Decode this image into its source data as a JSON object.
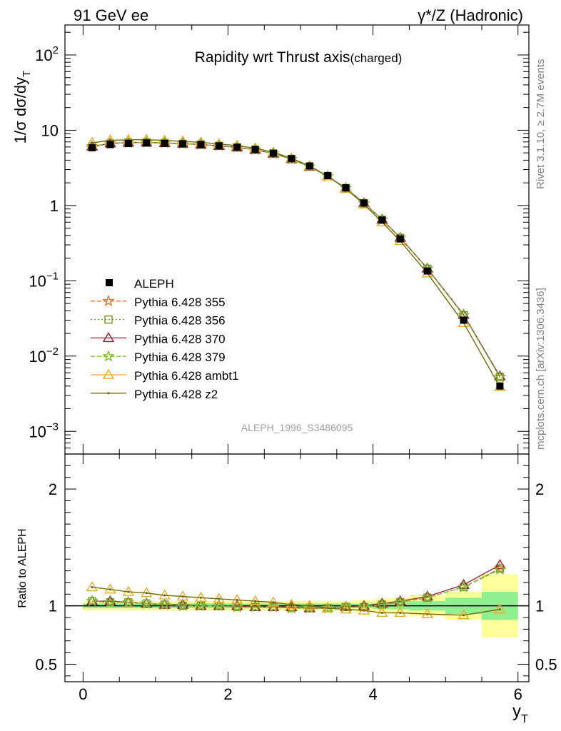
{
  "header": {
    "left": "91 GeV ee",
    "right": "γ*/Z (Hadronic)"
  },
  "side_labels": {
    "version": "Rivet 3.1.10, ≥ 2.7M events",
    "source": "mcplots.cern.ch [arXiv:1306.3436]"
  },
  "chart_data": {
    "type": "line",
    "title": "Rapidity wrt Thrust axis",
    "title_suffix": "(charged)",
    "analysis_label": "ALEPH_1996_S3486095",
    "ylabel_main": "1/σ dσ/dy",
    "ylabel_main_sub": "T",
    "ylabel_ratio": "Ratio to ALEPH",
    "xlabel": "y",
    "xlabel_sub": "T",
    "xlim": [
      -0.25,
      6.15
    ],
    "ylim_main_log": [
      0.0005,
      250
    ],
    "ylim_ratio": [
      0.35,
      2.3
    ],
    "y_scale_main": "log",
    "x_ticks": [
      0,
      2,
      4,
      6
    ],
    "y_ticks_main": [
      {
        "value": 0.001,
        "base": "10",
        "exp": "−3"
      },
      {
        "value": 0.01,
        "base": "10",
        "exp": "−2"
      },
      {
        "value": 0.1,
        "base": "10",
        "exp": "−1"
      },
      {
        "value": 1,
        "base": "1",
        "exp": ""
      },
      {
        "value": 10,
        "base": "10",
        "exp": ""
      },
      {
        "value": 100,
        "base": "10",
        "exp": "2"
      }
    ],
    "y_ticks_ratio": [
      0.5,
      1,
      2
    ],
    "x": [
      0.125,
      0.375,
      0.625,
      0.875,
      1.125,
      1.375,
      1.625,
      1.875,
      2.125,
      2.375,
      2.625,
      2.875,
      3.125,
      3.375,
      3.625,
      3.875,
      4.125,
      4.375,
      4.75,
      5.25,
      5.75
    ],
    "bins": [
      [
        0,
        0.25
      ],
      [
        0.25,
        0.5
      ],
      [
        0.5,
        0.75
      ],
      [
        0.75,
        1
      ],
      [
        1,
        1.25
      ],
      [
        1.25,
        1.5
      ],
      [
        1.5,
        1.75
      ],
      [
        1.75,
        2
      ],
      [
        2,
        2.25
      ],
      [
        2.25,
        2.5
      ],
      [
        2.5,
        2.75
      ],
      [
        2.75,
        3
      ],
      [
        3,
        3.25
      ],
      [
        3.25,
        3.5
      ],
      [
        3.5,
        3.75
      ],
      [
        3.75,
        4
      ],
      [
        4,
        4.25
      ],
      [
        4.25,
        4.5
      ],
      [
        4.5,
        5
      ],
      [
        5,
        5.5
      ],
      [
        5.5,
        6
      ]
    ],
    "data": {
      "name": "ALEPH",
      "values": [
        5.85,
        6.45,
        6.65,
        6.75,
        6.7,
        6.6,
        6.45,
        6.2,
        5.95,
        5.55,
        4.95,
        4.2,
        3.35,
        2.5,
        1.72,
        1.08,
        0.64,
        0.36,
        0.135,
        0.03,
        0.004
      ],
      "band_inner": [
        0.02,
        0.02,
        0.02,
        0.02,
        0.02,
        0.02,
        0.02,
        0.02,
        0.02,
        0.02,
        0.02,
        0.02,
        0.02,
        0.02,
        0.02,
        0.02,
        0.025,
        0.03,
        0.04,
        0.07,
        0.12
      ],
      "band_outer": [
        0.04,
        0.04,
        0.04,
        0.04,
        0.04,
        0.04,
        0.04,
        0.04,
        0.04,
        0.04,
        0.04,
        0.04,
        0.04,
        0.04,
        0.04,
        0.05,
        0.06,
        0.07,
        0.09,
        0.12,
        0.27
      ]
    },
    "series": [
      {
        "name": "Pythia 6.428 355",
        "color": "#f07020",
        "dash": "6,3",
        "marker": "star",
        "ratio": [
          1.04,
          1.03,
          1.03,
          1.02,
          1.01,
          1.0,
          1.0,
          1.0,
          0.99,
          0.99,
          0.99,
          0.98,
          0.98,
          0.98,
          0.99,
          0.99,
          1.01,
          1.03,
          1.07,
          1.16,
          1.32
        ]
      },
      {
        "name": "Pythia 6.428 356",
        "color": "#6a9a1f",
        "dash": "2,3",
        "marker": "square",
        "ratio": [
          1.04,
          1.03,
          1.03,
          1.02,
          1.01,
          1.0,
          1.0,
          1.0,
          0.99,
          0.99,
          0.99,
          0.98,
          0.98,
          0.98,
          0.99,
          0.99,
          1.01,
          1.03,
          1.07,
          1.16,
          1.32
        ]
      },
      {
        "name": "Pythia 6.428 370",
        "color": "#9c1a30",
        "dash": "",
        "marker": "triangle",
        "ratio": [
          1.04,
          1.04,
          1.03,
          1.02,
          1.01,
          1.01,
          1.0,
          1.0,
          1.0,
          0.99,
          0.99,
          0.99,
          0.98,
          0.98,
          0.99,
          1.0,
          1.02,
          1.04,
          1.08,
          1.18,
          1.35
        ]
      },
      {
        "name": "Pythia 6.428 379",
        "color": "#7ac030",
        "dash": "6,3",
        "marker": "star",
        "ratio": [
          1.04,
          1.03,
          1.03,
          1.02,
          1.01,
          1.0,
          1.0,
          1.0,
          0.99,
          0.99,
          0.99,
          0.98,
          0.98,
          0.98,
          0.99,
          0.99,
          1.01,
          1.03,
          1.07,
          1.16,
          1.31
        ]
      },
      {
        "name": "Pythia 6.428 ambt1",
        "color": "#f0a820",
        "dash": "",
        "marker": "triangle",
        "ratio": [
          1.16,
          1.14,
          1.12,
          1.11,
          1.09,
          1.08,
          1.07,
          1.06,
          1.05,
          1.04,
          1.03,
          1.01,
          1.0,
          0.98,
          0.97,
          0.96,
          0.94,
          0.94,
          0.93,
          0.92,
          0.97
        ]
      },
      {
        "name": "Pythia 6.428 z2",
        "color": "#6b6b10",
        "dash": "",
        "marker": "dot",
        "ratio": [
          1.16,
          1.14,
          1.12,
          1.11,
          1.09,
          1.08,
          1.07,
          1.06,
          1.05,
          1.04,
          1.03,
          1.01,
          1.0,
          0.98,
          0.97,
          0.96,
          0.94,
          0.94,
          0.93,
          0.92,
          0.97
        ]
      }
    ],
    "colors": {
      "band_inner": "#90f090",
      "band_outer": "#ffff99",
      "data": "#000000"
    },
    "legend_position": "lower-left"
  }
}
